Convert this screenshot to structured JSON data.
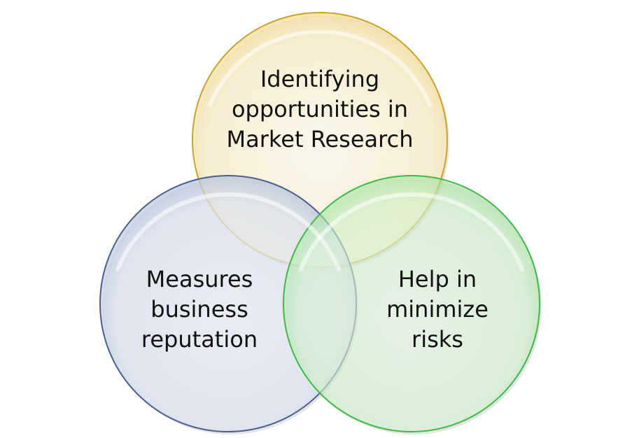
{
  "circles": {
    "top": {
      "lines": [
        "Identifying",
        "opportunities in",
        "Market Research"
      ],
      "fill": "#fdf1c6",
      "stroke": "#c9a227"
    },
    "left": {
      "lines": [
        "Measures",
        "business",
        "reputation"
      ],
      "fill": "#d8e1f1",
      "stroke": "#4a5f8c"
    },
    "right": {
      "lines": [
        "Help in",
        "minimize",
        "risks"
      ],
      "fill": "#c9f1c4",
      "stroke": "#3fb84a"
    }
  }
}
